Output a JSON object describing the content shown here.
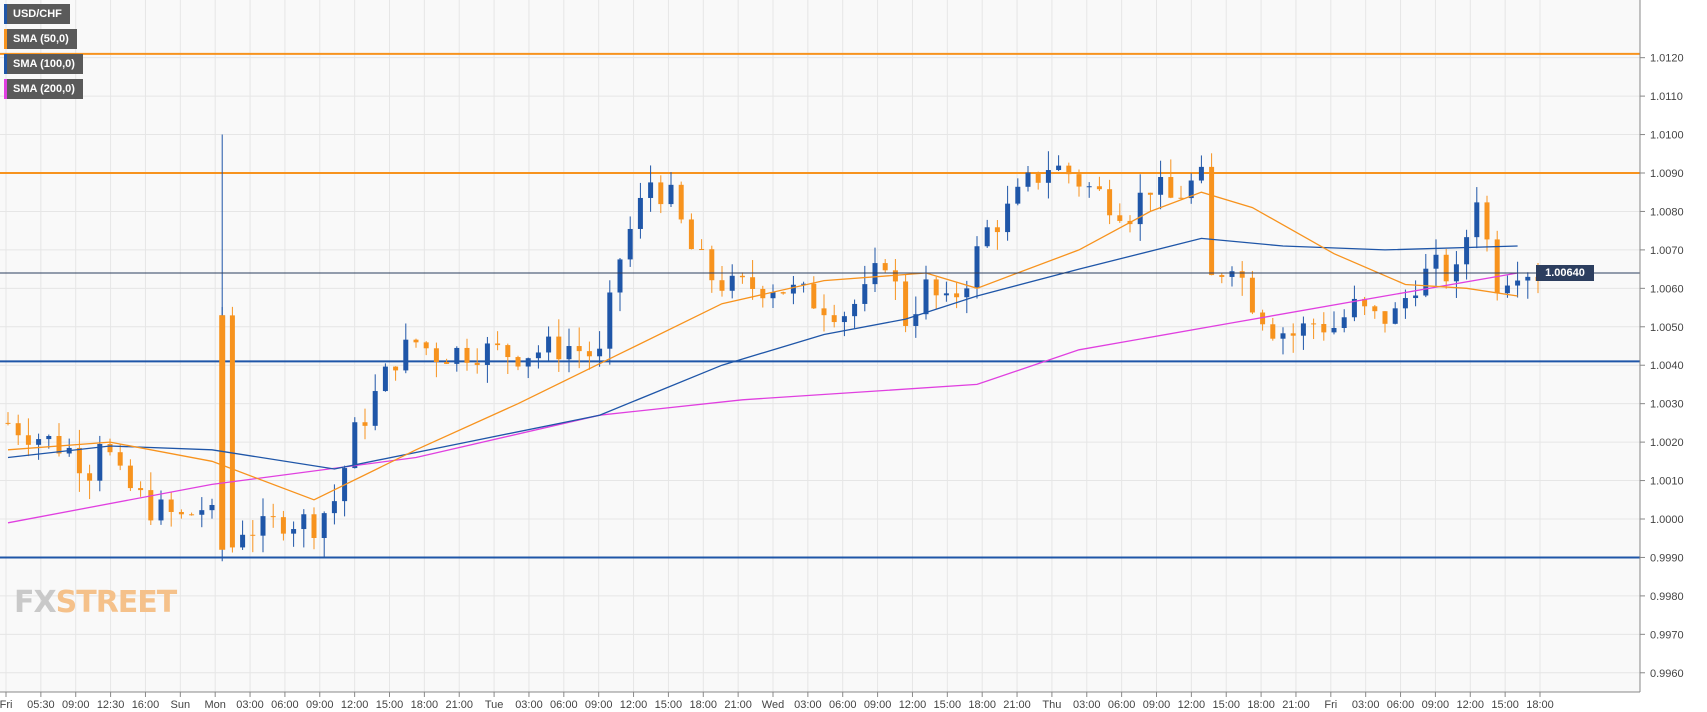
{
  "chart_data": {
    "type": "candlestick",
    "symbol": "USD/CHF",
    "ylim": [
      0.9955,
      1.0135
    ],
    "y_ticks": [
      "1.0120",
      "1.0110",
      "1.0100",
      "1.0090",
      "1.0080",
      "1.0070",
      "1.0060",
      "1.0050",
      "1.0040",
      "1.0030",
      "1.0020",
      "1.0010",
      "1.0000",
      "0.9990",
      "0.9980",
      "0.9970",
      "0.9960"
    ],
    "x_ticks": [
      "Fri",
      "05:30",
      "09:00",
      "12:30",
      "16:00",
      "Sun",
      "Mon",
      "03:00",
      "06:00",
      "09:00",
      "12:00",
      "15:00",
      "18:00",
      "21:00",
      "Tue",
      "03:00",
      "06:00",
      "09:00",
      "12:00",
      "15:00",
      "18:00",
      "21:00",
      "Wed",
      "03:00",
      "06:00",
      "09:00",
      "12:00",
      "15:00",
      "18:00",
      "21:00",
      "Thu",
      "03:00",
      "06:00",
      "09:00",
      "12:00",
      "15:00",
      "18:00",
      "21:00",
      "Fri",
      "03:00",
      "06:00",
      "09:00",
      "12:00",
      "15:00",
      "18:00"
    ],
    "last_price": "1.00640",
    "last_price_value": 1.0064,
    "horizontal_levels": [
      {
        "value": 1.0121,
        "color": "#f7931e"
      },
      {
        "value": 1.009,
        "color": "#f7931e"
      },
      {
        "value": 1.0041,
        "color": "#1f56a8"
      },
      {
        "value": 0.999,
        "color": "#1f56a8"
      }
    ],
    "candle_colors": {
      "up": "#1f56a8",
      "down": "#f7931e"
    },
    "close_path": [
      [
        0,
        1.0025
      ],
      [
        6,
        1.0018
      ],
      [
        8,
        1.0013
      ],
      [
        9,
        1.0022
      ],
      [
        11,
        1.001
      ],
      [
        14,
        1.0003
      ],
      [
        17,
        1.0
      ],
      [
        19,
        1.0003
      ],
      [
        20,
        1.0
      ],
      [
        21,
        1.0053
      ],
      [
        22,
        0.9993
      ],
      [
        23,
        0.9998
      ],
      [
        25,
        0.9997
      ],
      [
        27,
        1.0
      ],
      [
        30,
        0.9999
      ],
      [
        32,
        1.0005
      ],
      [
        34,
        1.0022
      ],
      [
        36,
        1.0032
      ],
      [
        38,
        1.0042
      ],
      [
        40,
        1.0046
      ],
      [
        42,
        1.0043
      ],
      [
        46,
        1.0044
      ],
      [
        50,
        1.0043
      ],
      [
        55,
        1.0045
      ],
      [
        58,
        1.0042
      ],
      [
        60,
        1.0068
      ],
      [
        61,
        1.0075
      ],
      [
        63,
        1.0088
      ],
      [
        65,
        1.0083
      ],
      [
        67,
        1.007
      ],
      [
        69,
        1.0063
      ],
      [
        71,
        1.006
      ],
      [
        75,
        1.0061
      ],
      [
        78,
        1.0058
      ],
      [
        82,
        1.0054
      ],
      [
        84,
        1.0058
      ],
      [
        86,
        1.0068
      ],
      [
        88,
        1.0052
      ],
      [
        90,
        1.006
      ],
      [
        92,
        1.0055
      ],
      [
        94,
        1.0063
      ],
      [
        96,
        1.0075
      ],
      [
        98,
        1.008
      ],
      [
        100,
        1.0087
      ],
      [
        102,
        1.0092
      ],
      [
        104,
        1.009
      ],
      [
        106,
        1.0086
      ],
      [
        108,
        1.0083
      ],
      [
        110,
        1.008
      ],
      [
        112,
        1.0087
      ],
      [
        114,
        1.0083
      ],
      [
        116,
        1.0087
      ],
      [
        117,
        1.0088
      ],
      [
        118,
        1.0062
      ],
      [
        120,
        1.0068
      ],
      [
        122,
        1.0057
      ],
      [
        124,
        1.005
      ],
      [
        126,
        1.0048
      ],
      [
        128,
        1.0051
      ],
      [
        130,
        1.005
      ],
      [
        132,
        1.0055
      ],
      [
        134,
        1.0052
      ],
      [
        136,
        1.0053
      ],
      [
        138,
        1.0062
      ],
      [
        140,
        1.0065
      ],
      [
        142,
        1.0063
      ],
      [
        144,
        1.0085
      ],
      [
        145,
        1.0072
      ],
      [
        146,
        1.0062
      ],
      [
        148,
        1.0066
      ],
      [
        150,
        1.0064
      ]
    ],
    "sma_paths": {
      "sma50": [
        [
          0,
          1.0018
        ],
        [
          10,
          1.002
        ],
        [
          20,
          1.0015
        ],
        [
          30,
          1.0005
        ],
        [
          40,
          1.0018
        ],
        [
          50,
          1.003
        ],
        [
          60,
          1.0043
        ],
        [
          70,
          1.0056
        ],
        [
          80,
          1.0062
        ],
        [
          90,
          1.0064
        ],
        [
          95,
          1.006
        ],
        [
          105,
          1.007
        ],
        [
          112,
          1.008
        ],
        [
          117,
          1.0085
        ],
        [
          122,
          1.0081
        ],
        [
          130,
          1.0069
        ],
        [
          137,
          1.0061
        ],
        [
          143,
          1.006
        ],
        [
          148,
          1.0058
        ]
      ],
      "sma100": [
        [
          0,
          1.0016
        ],
        [
          10,
          1.0019
        ],
        [
          20,
          1.0018
        ],
        [
          32,
          1.0013
        ],
        [
          45,
          1.002
        ],
        [
          58,
          1.0027
        ],
        [
          70,
          1.004
        ],
        [
          80,
          1.0048
        ],
        [
          88,
          1.0052
        ],
        [
          95,
          1.0058
        ],
        [
          105,
          1.0065
        ],
        [
          117,
          1.0073
        ],
        [
          125,
          1.0071
        ],
        [
          135,
          1.007
        ],
        [
          148,
          1.0071
        ]
      ],
      "sma200": [
        [
          0,
          0.9999
        ],
        [
          20,
          1.0009
        ],
        [
          40,
          1.0016
        ],
        [
          58,
          1.0027
        ],
        [
          72,
          1.0031
        ],
        [
          95,
          1.0035
        ],
        [
          105,
          1.0044
        ],
        [
          120,
          1.0051
        ],
        [
          135,
          1.0058
        ],
        [
          148,
          1.0064
        ]
      ]
    }
  },
  "legend": [
    {
      "label": "USD/CHF",
      "color": "#1f56a8"
    },
    {
      "label": "SMA (50,0)",
      "color": "#f7931e"
    },
    {
      "label": "SMA (100,0)",
      "color": "#1f56a8"
    },
    {
      "label": "SMA (200,0)",
      "color": "#e040e0"
    }
  ],
  "logo": {
    "prefix": "FX",
    "suffix": "STREET"
  },
  "colors": {
    "sma50": "#f7931e",
    "sma100": "#1f56a8",
    "sma200": "#e040e0",
    "grid": "#e6e6e6",
    "axis": "#444444"
  }
}
